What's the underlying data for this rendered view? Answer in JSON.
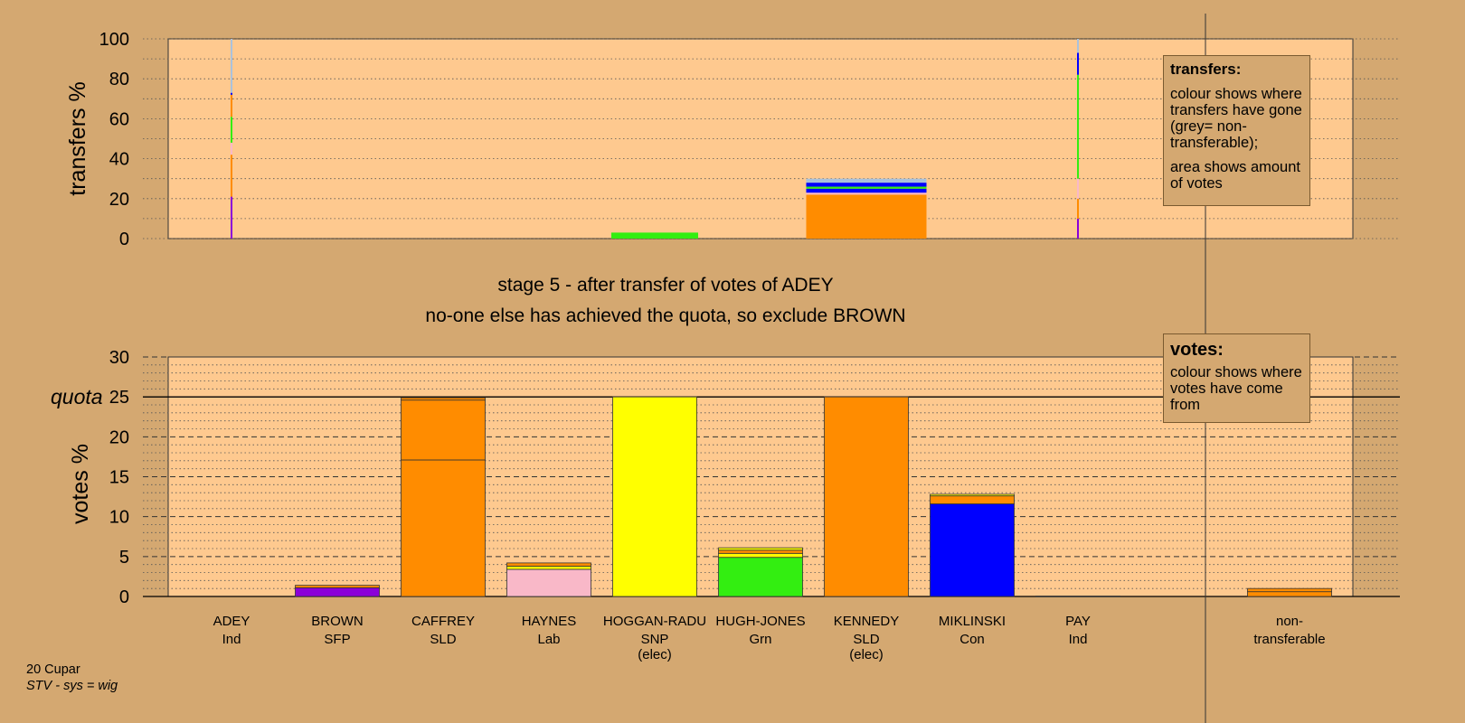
{
  "chart_data": [
    {
      "type": "bar",
      "subtype": "stacked",
      "panel": "transfers",
      "ylabel": "transfers %",
      "ylim": [
        0,
        100
      ],
      "yticks": [
        0,
        20,
        40,
        60,
        80,
        100
      ],
      "grid": true,
      "bars": [
        {
          "category": "ADEY",
          "width_kind": "thin",
          "segments": [
            {
              "from": 0,
              "to": 21,
              "color": "#8b00d8"
            },
            {
              "from": 21,
              "to": 42,
              "color": "#ff8c00"
            },
            {
              "from": 42,
              "to": 48,
              "color": "#f9b8c8"
            },
            {
              "from": 48,
              "to": 61,
              "color": "#33ee11"
            },
            {
              "from": 61,
              "to": 72,
              "color": "#ff8c00"
            },
            {
              "from": 72,
              "to": 73,
              "color": "#0000ff"
            },
            {
              "from": 73,
              "to": 100,
              "color": "#aac2dc"
            }
          ]
        },
        {
          "category": "HOGGAN-RADU",
          "width_kind": "wide",
          "segments": [
            {
              "from": 0,
              "to": 3,
              "color": "#33ee11"
            }
          ]
        },
        {
          "category": "KENNEDY",
          "width_kind": "wide",
          "segments": [
            {
              "from": 0,
              "to": 22,
              "color": "#ff8c00"
            },
            {
              "from": 22,
              "to": 23,
              "color": "#f9b8c8"
            },
            {
              "from": 23,
              "to": 25,
              "color": "#0000ff"
            },
            {
              "from": 25,
              "to": 26,
              "color": "#33ee11"
            },
            {
              "from": 26,
              "to": 28,
              "color": "#0000ff"
            },
            {
              "from": 28,
              "to": 30,
              "color": "#aac2dc"
            }
          ]
        },
        {
          "category": "PAY",
          "width_kind": "thin",
          "segments": [
            {
              "from": 0,
              "to": 10,
              "color": "#8b00d8"
            },
            {
              "from": 10,
              "to": 20,
              "color": "#ff8c00"
            },
            {
              "from": 20,
              "to": 30,
              "color": "#f9b8c8"
            },
            {
              "from": 30,
              "to": 82,
              "color": "#33ee11"
            },
            {
              "from": 82,
              "to": 93,
              "color": "#0000ff"
            },
            {
              "from": 93,
              "to": 100,
              "color": "#aac2dc"
            }
          ]
        }
      ]
    },
    {
      "type": "bar",
      "subtype": "stacked",
      "panel": "votes",
      "ylabel": "votes %",
      "ylim": [
        0,
        30
      ],
      "yticks": [
        0,
        5,
        10,
        15,
        20,
        25,
        30
      ],
      "quota": 25,
      "quota_label": "quota",
      "grid": true,
      "categories": [
        {
          "name": "ADEY",
          "sub": "Ind",
          "extra": ""
        },
        {
          "name": "BROWN",
          "sub": "SFP",
          "extra": ""
        },
        {
          "name": "CAFFREY",
          "sub": "SLD",
          "extra": ""
        },
        {
          "name": "HAYNES",
          "sub": "Lab",
          "extra": ""
        },
        {
          "name": "HOGGAN-RADU",
          "sub": "SNP",
          "extra": "(elec)"
        },
        {
          "name": "HUGH-JONES",
          "sub": "Grn",
          "extra": ""
        },
        {
          "name": "KENNEDY",
          "sub": "SLD",
          "extra": "(elec)"
        },
        {
          "name": "MIKLINSKI",
          "sub": "Con",
          "extra": ""
        },
        {
          "name": "PAY",
          "sub": "Ind",
          "extra": ""
        },
        {
          "name": "",
          "sub": "",
          "extra": ""
        },
        {
          "name": "non-",
          "sub": "transferable",
          "extra": ""
        }
      ],
      "bars": [
        {
          "category": "ADEY",
          "segments": []
        },
        {
          "category": "BROWN",
          "segments": [
            {
              "from": 0,
              "to": 1.1,
              "color": "#8b00d8"
            },
            {
              "from": 1.1,
              "to": 1.4,
              "color": "#ff8c00"
            }
          ]
        },
        {
          "category": "CAFFREY",
          "segments": [
            {
              "from": 0,
              "to": 17.1,
              "color": "#ff8c00"
            },
            {
              "from": 17.1,
              "to": 24.6,
              "color": "#ff8c00"
            },
            {
              "from": 24.6,
              "to": 24.9,
              "color": "#ff8c00"
            }
          ]
        },
        {
          "category": "HAYNES",
          "segments": [
            {
              "from": 0,
              "to": 3.4,
              "color": "#f9b8c8"
            },
            {
              "from": 3.4,
              "to": 3.8,
              "color": "#ffff00"
            },
            {
              "from": 3.8,
              "to": 4.2,
              "color": "#ff8c00"
            }
          ]
        },
        {
          "category": "HOGGAN-RADU",
          "segments": [
            {
              "from": 0,
              "to": 25,
              "color": "#ffff00"
            }
          ]
        },
        {
          "category": "HUGH-JONES",
          "segments": [
            {
              "from": 0,
              "to": 4.9,
              "color": "#33ee11"
            },
            {
              "from": 4.9,
              "to": 5.4,
              "color": "#ffff00"
            },
            {
              "from": 5.4,
              "to": 5.8,
              "color": "#ff8c00"
            },
            {
              "from": 5.8,
              "to": 6.1,
              "color": "#ffff00"
            }
          ]
        },
        {
          "category": "KENNEDY",
          "segments": [
            {
              "from": 0,
              "to": 25,
              "color": "#ff8c00"
            }
          ]
        },
        {
          "category": "MIKLINSKI",
          "segments": [
            {
              "from": 0,
              "to": 11.6,
              "color": "#0000ff"
            },
            {
              "from": 11.6,
              "to": 12.6,
              "color": "#ff8c00"
            },
            {
              "from": 12.6,
              "to": 12.8,
              "color": "#ffff00"
            }
          ]
        },
        {
          "category": "PAY",
          "segments": [
            {
              "from": 0,
              "to": 0.05,
              "color": "#ff8c00"
            }
          ]
        },
        {
          "category": "",
          "segments": []
        },
        {
          "category": "non-transferable",
          "segments": [
            {
              "from": 0,
              "to": 0.6,
              "color": "#ff8c00"
            },
            {
              "from": 0.6,
              "to": 1.0,
              "color": "#ff8c00"
            }
          ]
        }
      ]
    }
  ],
  "stage": {
    "title": "stage 5 - after transfer of votes of ADEY",
    "subtitle": "no-one else has achieved the quota, so exclude BROWN"
  },
  "legend_transfers": {
    "title": "transfers:",
    "line1": "colour shows where transfers have gone (grey= non-transferable);",
    "line2": "area shows amount of votes"
  },
  "legend_votes": {
    "title": "votes:",
    "line1": "colour shows where votes have come from"
  },
  "footer": {
    "ward": "20 Cupar",
    "system": "STV - sys = wig"
  },
  "colors": {
    "background": "#d4a871",
    "plot_area": "#fec98f",
    "purple": "#8b00d8",
    "orange": "#ff8c00",
    "pink": "#f9b8c8",
    "yellow": "#ffff00",
    "green": "#33ee11",
    "blue": "#0000ff",
    "grey": "#aac2dc"
  }
}
